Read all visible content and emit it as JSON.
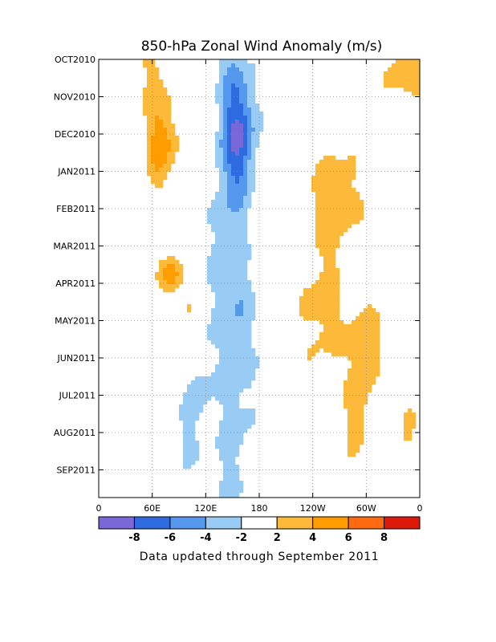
{
  "chart_data": {
    "type": "heatmap",
    "title": "850-hPa Zonal Wind Anomaly (m/s)",
    "xlabel": "",
    "ylabel": "",
    "x_ticks": [
      "0",
      "60E",
      "120E",
      "180",
      "120W",
      "60W",
      "0"
    ],
    "y_ticks": [
      "OCT2010",
      "NOV2010",
      "DEC2010",
      "JAN2011",
      "FEB2011",
      "MAR2011",
      "APR2011",
      "MAY2011",
      "JUN2011",
      "JUL2011",
      "AUG2011",
      "SEP2011"
    ],
    "xlim_deg_east": [
      0,
      360
    ],
    "time_range": [
      "OCT2010",
      "SEP2011"
    ],
    "contour_levels": [
      -8,
      -6,
      -4,
      -2,
      2,
      4,
      6,
      8
    ],
    "colorbar_labels": [
      "-8",
      "-6",
      "-4",
      "-2",
      "2",
      "4",
      "6",
      "8"
    ],
    "colorbar_colors": [
      "#7a68d8",
      "#2f6be0",
      "#5599ee",
      "#99ccf5",
      "#ffffff",
      "#fdb93a",
      "#ff9c00",
      "#ff6a10",
      "#dd1a0a"
    ],
    "grid": true,
    "anomaly_features": [
      {
        "sign": "negative",
        "region": "near 140E-180",
        "period": "OCT2010-SEP2011",
        "peak": -8,
        "peak_time": "DEC2010"
      },
      {
        "sign": "positive",
        "region": "near 50E-90E",
        "period": "NOV2010-JAN2011",
        "peak": 6
      },
      {
        "sign": "positive",
        "region": "near 70E-100E",
        "period": "APR2011",
        "peak": 6
      },
      {
        "sign": "positive",
        "region": "near 130W-60W",
        "period": "DEC2010-SEP2011",
        "peak": 4
      },
      {
        "sign": "positive",
        "region": "near 30W-0",
        "period": "OCT2010-NOV2010",
        "peak": 4
      }
    ],
    "footer": "Data updated through September 2011"
  }
}
